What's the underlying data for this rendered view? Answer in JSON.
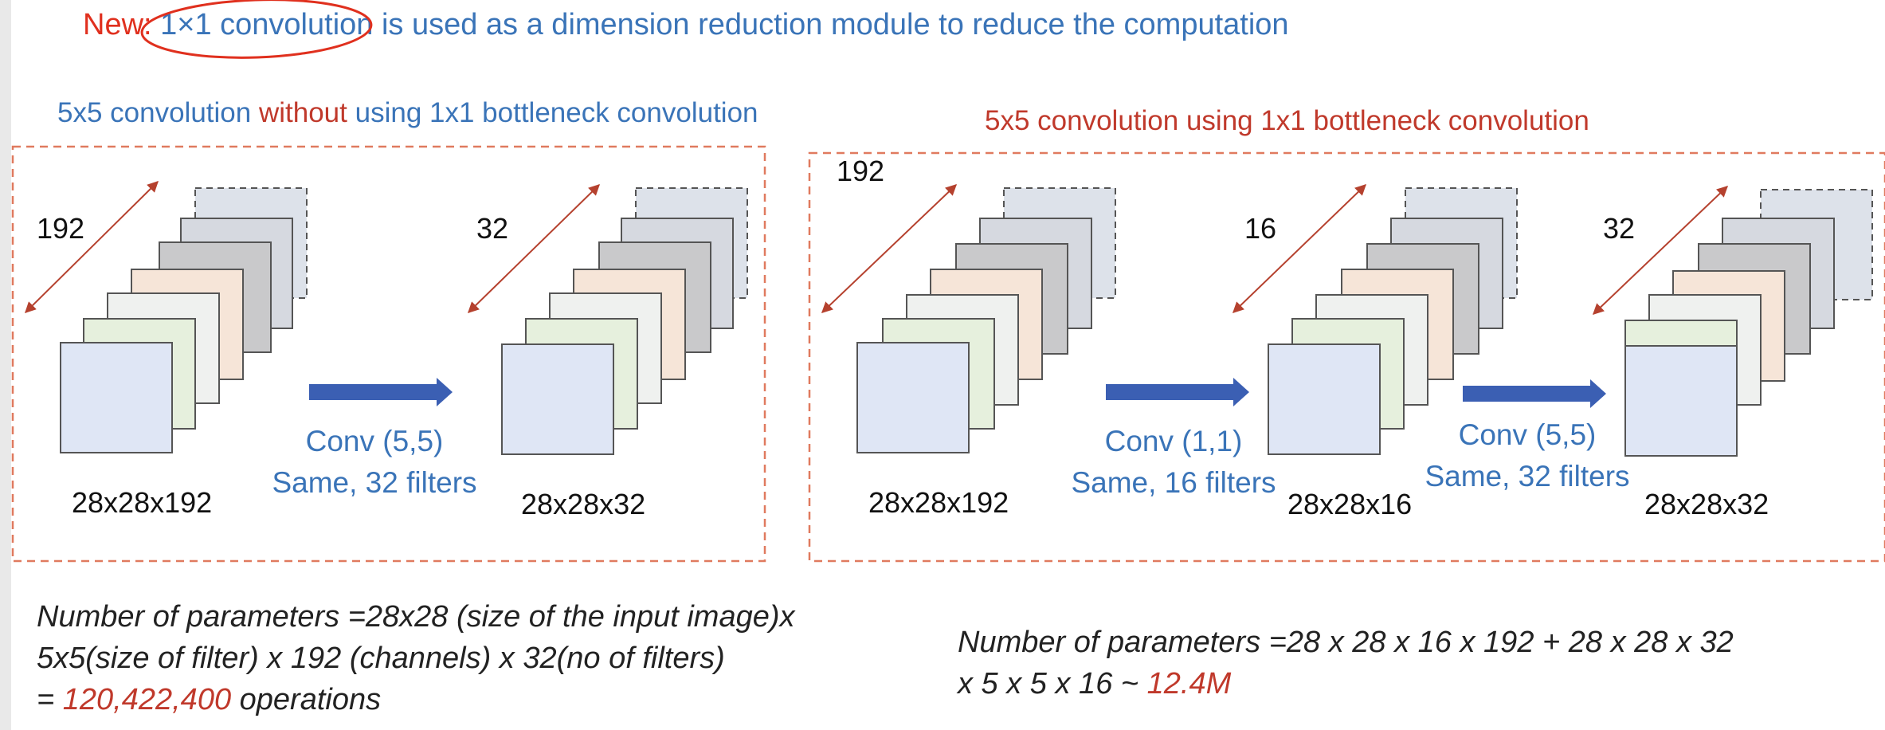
{
  "headline": {
    "new_label": "New:",
    "highlight": "1×1 convolution",
    "rest": "is used as a dimension reduction module to reduce the computation"
  },
  "left_panel": {
    "title_part1": "5x5 convolution",
    "title_part2": "without",
    "title_part3": "using 1x1 bottleneck convolution",
    "input_depth": "192",
    "input_dims": "28x28x192",
    "op_line1": "Conv (5,5)",
    "op_line2": "Same, 32 filters",
    "output_depth": "32",
    "output_dims": "28x28x32",
    "formula_line1": "Number of parameters =28x28 (size of the input image)x",
    "formula_line2": "5x5(size of filter) x 192 (channels) x 32(no of filters)",
    "formula_line3_prefix": "=",
    "formula_result": "120,422,400",
    "formula_line3_suffix": "operations"
  },
  "right_panel": {
    "title": "5x5 convolution using 1x1 bottleneck convolution",
    "input_depth": "192",
    "input_dims": "28x28x192",
    "op1_line1": "Conv (1,1)",
    "op1_line2": "Same, 16 filters",
    "mid_depth": "16",
    "mid_dims": "28x28x16",
    "op2_line1": "Conv (5,5)",
    "op2_line2": "Same, 32 filters",
    "output_depth": "32",
    "output_dims": "28x28x32",
    "formula_line1": "Number of parameters =28 x 28 x 16  x 192  + 28 x 28 x 32",
    "formula_line2_prefix": "x 5 x 5 x 16  ~",
    "formula_result": "12.4M"
  },
  "colors": {
    "blue_text": "#3a74b8",
    "red_text": "#c0392b",
    "dashed_border": "#e07a5f",
    "arrow_fill": "#3b5fb3",
    "depth_arrow": "#b5412e"
  }
}
